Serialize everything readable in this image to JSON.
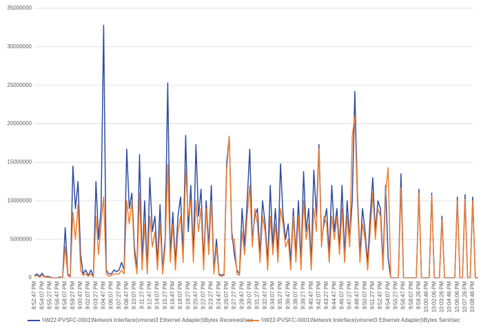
{
  "chart_data": {
    "type": "line",
    "categories": [
      "8:52:47 PM",
      null,
      null,
      "8:54:07 PM",
      null,
      null,
      "8:55:27 PM",
      null,
      null,
      "8:56:47 PM",
      null,
      null,
      "8:58:07 PM",
      null,
      null,
      "8:59:27 PM",
      null,
      null,
      "9:00:47 PM",
      null,
      null,
      "9:02:07 PM",
      null,
      null,
      "9:03:27 PM",
      null,
      null,
      "9:04:47 PM",
      null,
      null,
      "9:06:07 PM",
      null,
      null,
      "9:07:27 PM",
      null,
      null,
      "9:08:47 PM",
      null,
      null,
      "9:10:07 PM",
      null,
      null,
      "9:11:27 PM",
      null,
      null,
      "9:12:47 PM",
      null,
      null,
      "9:14:07 PM",
      null,
      null,
      "9:15:27 PM",
      null,
      null,
      "9:16:47 PM",
      null,
      null,
      "9:18:07 PM",
      null,
      null,
      "9:19:27 PM",
      null,
      null,
      "9:20:47 PM",
      null,
      null,
      "9:22:07 PM",
      null,
      null,
      "9:23:27 PM",
      null,
      null,
      "9:24:47 PM",
      null,
      null,
      "9:26:07 PM",
      null,
      null,
      "9:27:27 PM",
      null,
      null,
      "9:28:47 PM",
      null,
      null,
      "9:30:07 PM",
      null,
      null,
      "9:31:27 PM",
      null,
      null,
      "9:32:47 PM",
      null,
      null,
      "9:34:07 PM",
      null,
      null,
      "9:35:27 PM",
      null,
      null,
      "9:36:47 PM",
      null,
      null,
      "9:38:07 PM",
      null,
      null,
      "9:39:27 PM",
      null,
      null,
      "9:40:47 PM",
      null,
      null,
      "9:42:07 PM",
      null,
      null,
      "9:43:27 PM",
      null,
      null,
      "9:44:47 PM",
      null,
      null,
      "9:46:07 PM",
      null,
      null,
      "9:47:27 PM",
      null,
      null,
      "9:48:47 PM",
      null,
      null,
      "9:50:07 PM",
      null,
      null,
      "9:51:27 PM",
      null,
      null,
      "9:52:47 PM",
      null,
      null,
      "9:54:07 PM",
      null,
      null,
      "9:55:27 PM",
      null,
      null,
      "9:56:47 PM",
      null,
      null,
      "9:58:07 PM",
      null,
      null,
      "9:59:26 PM",
      null,
      null,
      "10:00:46 PM",
      null,
      null,
      "10:02:06 PM",
      null,
      null,
      "10:03:26 PM",
      null,
      null,
      "10:04:46 PM",
      null,
      null,
      "10:06:06 PM",
      null,
      null,
      "10:07:26 PM",
      null,
      null,
      "10:08:46 PM",
      null,
      null
    ],
    "series": [
      {
        "name": "\\\\W22-PVSFC-0001\\Network Interface(vmxnet3 Ethernet Adapter)\\Bytes Received/sec",
        "color": "#2f4b9c",
        "values": [
          300000,
          500000,
          200000,
          600000,
          100000,
          200000,
          100000,
          0,
          0,
          0,
          100000,
          0,
          6500000,
          500000,
          200000,
          14500000,
          9000000,
          12500000,
          3000000,
          500000,
          1000000,
          300000,
          1000000,
          200000,
          12500000,
          5000000,
          9000000,
          32800000,
          1000000,
          500000,
          500000,
          1000000,
          800000,
          1000000,
          2000000,
          1000000,
          16700000,
          9000000,
          11000000,
          4000000,
          1000000,
          16000000,
          2000000,
          10000000,
          1000000,
          13000000,
          6000000,
          8000000,
          2000000,
          9500000,
          1000000,
          5000000,
          25300000,
          3000000,
          8500000,
          2000000,
          8000000,
          10500000,
          3000000,
          18500000,
          6000000,
          12000000,
          3000000,
          17300000,
          8000000,
          11500000,
          2000000,
          10000000,
          4000000,
          12000000,
          1000000,
          5000000,
          500000,
          300000,
          500000,
          15000000,
          18300000,
          6000000,
          3000000,
          1000000,
          500000,
          9000000,
          4000000,
          10000000,
          16700000,
          5000000,
          8000000,
          9000000,
          3000000,
          10000000,
          7000000,
          2000000,
          12000000,
          4000000,
          9000000,
          3000000,
          14800000,
          8000000,
          5000000,
          7000000,
          2000000,
          9000000,
          3000000,
          10000000,
          2000000,
          13800000,
          6000000,
          9000000,
          2000000,
          14000000,
          8000000,
          17300000,
          5000000,
          7000000,
          9000000,
          3000000,
          12000000,
          6000000,
          9000000,
          4000000,
          12000000,
          3000000,
          10000000,
          5000000,
          10000000,
          24200000,
          11000000,
          3000000,
          9000000,
          6000000,
          2000000,
          8000000,
          13000000,
          6000000,
          10000000,
          9000000,
          2000000,
          12000000,
          2500000,
          0,
          0,
          0,
          0,
          13500000,
          0,
          0,
          0,
          0,
          0,
          0,
          11500000,
          0,
          0,
          0,
          0,
          11000000,
          0,
          0,
          0,
          8000000,
          0,
          0,
          0,
          0,
          0,
          10500000,
          0,
          0,
          10800000,
          0,
          0,
          10500000,
          0,
          0
        ]
      },
      {
        "name": "\\\\W22-PVSFC-0001\\Network Interface(vmxnet3 Ethernet Adapter)\\Bytes Sent/sec",
        "color": "#ed7d31",
        "values": [
          200000,
          300000,
          100000,
          300000,
          100000,
          100000,
          0,
          0,
          0,
          0,
          0,
          0,
          4000000,
          300000,
          100000,
          8500000,
          5000000,
          9500000,
          1000000,
          300000,
          500000,
          200000,
          500000,
          100000,
          8000000,
          3000000,
          7000000,
          10500000,
          500000,
          200000,
          300000,
          500000,
          500000,
          500000,
          1000000,
          500000,
          10000000,
          7000000,
          10000000,
          3000000,
          500000,
          11000000,
          1000000,
          7000000,
          500000,
          8000000,
          4000000,
          6000000,
          1000000,
          7000000,
          500000,
          4000000,
          14700000,
          2000000,
          7000000,
          1000000,
          6000000,
          8000000,
          2000000,
          14000000,
          8000000,
          10000000,
          2000000,
          10000000,
          6000000,
          9000000,
          1000000,
          9000000,
          3000000,
          10000000,
          500000,
          4000000,
          300000,
          200000,
          300000,
          14000000,
          18400000,
          5000000,
          5000000,
          500000,
          300000,
          6000000,
          3000000,
          8000000,
          12000000,
          4000000,
          9000000,
          7000000,
          2000000,
          8000000,
          6000000,
          1000000,
          8000000,
          3000000,
          7000000,
          2000000,
          9000000,
          7000000,
          4000000,
          5000000,
          1000000,
          8000000,
          2000000,
          8000000,
          1000000,
          10000000,
          5000000,
          7000000,
          1000000,
          9000000,
          6000000,
          16800000,
          4000000,
          8000000,
          7000000,
          2000000,
          8000000,
          5000000,
          8000000,
          3000000,
          9000000,
          2000000,
          8000000,
          4000000,
          18400000,
          21000000,
          10000000,
          2000000,
          7000000,
          5000000,
          1000000,
          6000000,
          11000000,
          5000000,
          9000000,
          8000000,
          1000000,
          11000000,
          14300000,
          0,
          0,
          0,
          0,
          11700000,
          0,
          0,
          0,
          0,
          0,
          0,
          11000000,
          0,
          0,
          0,
          0,
          10700000,
          0,
          0,
          0,
          7500000,
          0,
          0,
          0,
          0,
          0,
          10000000,
          0,
          0,
          10200000,
          0,
          0,
          10000000,
          0,
          0
        ]
      }
    ],
    "ylim": [
      0,
      35000000
    ],
    "yticks": [
      0,
      5000000,
      10000000,
      15000000,
      20000000,
      25000000,
      30000000,
      35000000
    ],
    "grid": true,
    "legend": "bottom"
  }
}
